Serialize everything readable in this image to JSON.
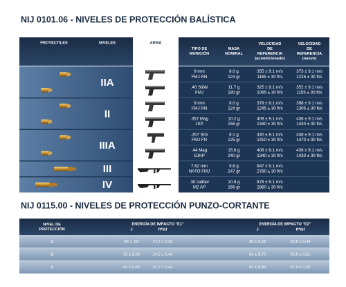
{
  "ballistic": {
    "title": "NIJ 0101.06 - NIVELES DE PROTECCIÓN BALÍSTICA",
    "headers": [
      [
        "PROYECTILES"
      ],
      [
        "NIVELES"
      ],
      [
        "ARMA"
      ],
      [
        "TIPO DE",
        "MUNICIÓN"
      ],
      [
        "MASA",
        "NOMINAL"
      ],
      [
        "VELOCIDAD",
        "DE",
        "REFERENCIA",
        "(acondicionado)"
      ],
      [
        "VELOCIDAD",
        "DE",
        "REFERENCIA",
        "(nuevo)"
      ]
    ],
    "levels": [
      "IIA",
      "II",
      "IIIA",
      "III",
      "IV"
    ],
    "rows": [
      [
        [
          "9 mm",
          "FMJ RN"
        ],
        [
          "8.0 g",
          "124 gr"
        ],
        [
          "355 ± 9.1 m/s",
          "1165 ± 30 ft/s"
        ],
        [
          "373 ± 9.1 m/s",
          "1225 ± 30 ft/s"
        ]
      ],
      [
        [
          ".40 S&W",
          "FMJ"
        ],
        [
          "11.7 g",
          "180 gr"
        ],
        [
          "325 ± 9.1 m/s",
          "1065 ± 30 ft/s"
        ],
        [
          "352 ± 9.1 m/s",
          "1155 ± 30 ft/s"
        ]
      ],
      [
        [
          "9 mm",
          "FMJ RN"
        ],
        [
          "8.0 g",
          "124 gr"
        ],
        [
          "379 ± 9.1 m/s",
          "1245 ± 30 ft/s"
        ],
        [
          "398 ± 9.1 m/s",
          "1305 ± 30 ft/s"
        ]
      ],
      [
        [
          ".357 Mag",
          "JSP"
        ],
        [
          "10.2 g",
          "158 gr"
        ],
        [
          "408 ± 9.1 m/s",
          "1340 ± 30 ft/s"
        ],
        [
          "436 ± 9.1 m/s",
          "1430 ± 30 ft/s"
        ]
      ],
      [
        [
          ".357 SIG",
          "FMJ FN"
        ],
        [
          "8.1 g",
          "125 gr"
        ],
        [
          "430 ± 9.1 m/s",
          "1410 ± 30 ft/s"
        ],
        [
          "448 ± 9.1 m/s",
          "1470 ± 30 ft/s"
        ]
      ],
      [
        [
          ".44 Mag",
          "SJHP"
        ],
        [
          "15.6 g",
          "240 gr"
        ],
        [
          "408 ± 9.1 m/s",
          "1340 ± 30 ft/s"
        ],
        [
          "436 ± 9.1 m/s",
          "1430 ± 30 ft/s"
        ]
      ],
      [
        [
          "7.62 mm",
          "NATO FMJ"
        ],
        [
          "9.6 g",
          "147 gr"
        ],
        [
          "847 ± 9.1 m/s",
          "2780 ± 30 ft/s"
        ]
      ],
      [
        [
          ".30 caliber",
          "M2 AP"
        ],
        [
          "10.8 g",
          "166 gr"
        ],
        [
          "878 ± 9.1 m/s",
          "2880 ± 30 ft/s"
        ]
      ]
    ]
  },
  "stab": {
    "title": "NIJ 0115.00 - NIVELES DE PROTECCIÓN PUNZO-CORTANTE",
    "headers": {
      "level": [
        "NIVEL DE",
        "PROTECCIÓN"
      ],
      "e1": "ENERGÍA DE IMPACTO \"E1\"",
      "e1_units": [
        "J",
        "ft*lbf"
      ],
      "e2": "ENERGÍA DE IMPACTO \"E2\"",
      "e2_units": [
        "J",
        "ft*lbf"
      ]
    },
    "rows": [
      [
        "1",
        "24 ± ,50",
        "17,7 ± 0,36",
        "36 ± 0,60",
        "26,6 ± 0,44"
      ],
      [
        "2",
        "33 ± 0,60",
        "24,3 ± 0,44",
        "50 ± 0,70",
        "36,9 ± 0,51"
      ],
      [
        "3",
        "43 ± 0,60",
        "31,7 ± 0,44",
        "65 ± 0,80",
        "47,9 ± 0,59"
      ]
    ]
  }
}
